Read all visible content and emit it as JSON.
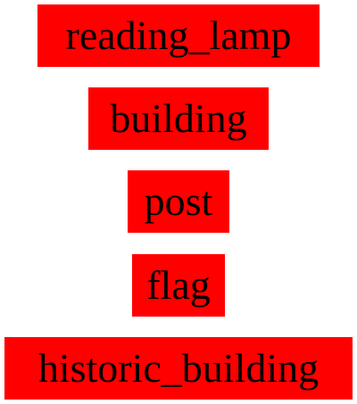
{
  "labels": [
    {
      "text": "reading_lamp",
      "background": "#ff0000"
    },
    {
      "text": "building",
      "background": "#ff0000"
    },
    {
      "text": "post",
      "background": "#ff0000"
    },
    {
      "text": "flag",
      "background": "#ff0000"
    },
    {
      "text": "historic_building",
      "background": "#ff0000"
    }
  ]
}
